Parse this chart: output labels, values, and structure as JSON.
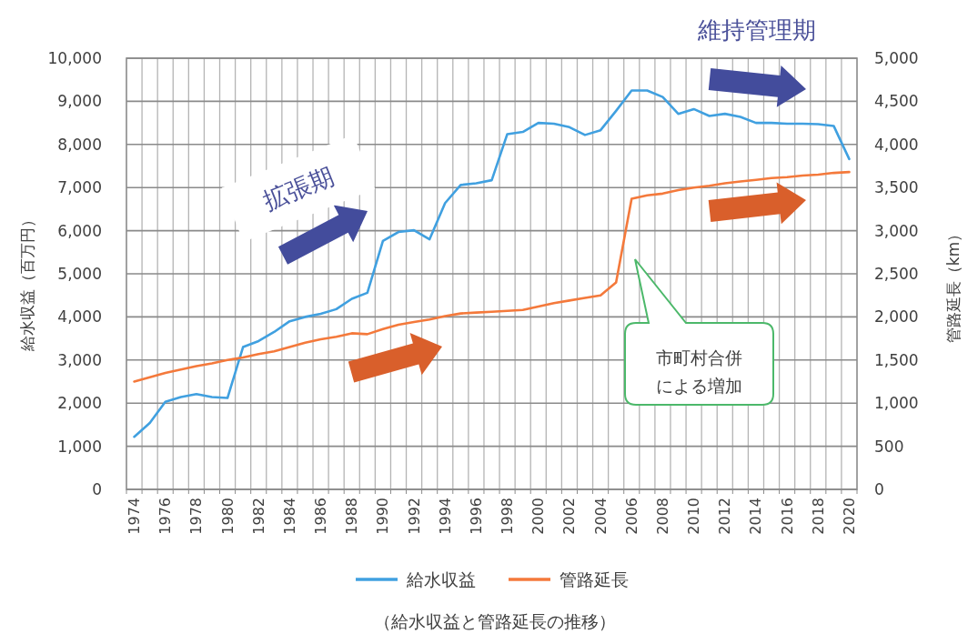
{
  "chart_data": {
    "type": "line",
    "ylabel": "給水収益（百万円）",
    "y2label": "管路延長（km）",
    "annotations": [
      "維持管理期",
      "拡張期",
      "市町村合併による増加",
      "（給水収益と管路延長の推移）"
    ],
    "categories": [
      "1974",
      null,
      "1976",
      null,
      "1978",
      null,
      "1980",
      null,
      "1982",
      null,
      "1984",
      null,
      "1986",
      null,
      "1988",
      null,
      "1990",
      null,
      "1992",
      null,
      "1994",
      null,
      "1996",
      null,
      "1998",
      null,
      "2000",
      null,
      "2002",
      null,
      "2004",
      null,
      "2006",
      null,
      "2008",
      null,
      "2010",
      null,
      "2012",
      null,
      "2014",
      null,
      "2016",
      null,
      "2018",
      null,
      "2020"
    ],
    "series": [
      {
        "name": "給水収益",
        "color": "#40a0e0",
        "values": [
          1220,
          1540,
          2030,
          2140,
          2210,
          2140,
          2120,
          3300,
          3440,
          3650,
          3900,
          4000,
          4070,
          4180,
          4420,
          4560,
          5760,
          5970,
          6010,
          5800,
          6640,
          7060,
          7100,
          7170,
          8240,
          8290,
          8500,
          8480,
          8400,
          8220,
          8330,
          8780,
          9250,
          9250,
          9100,
          8710,
          8820,
          8660,
          8710,
          8640,
          8500,
          8500,
          8480,
          8480,
          8470,
          8430,
          7660
        ]
      },
      {
        "name": "管路延長",
        "color": "#f4793b",
        "axis": "y2",
        "values": [
          1250,
          1300,
          1350,
          1390,
          1430,
          1460,
          1500,
          1530,
          1570,
          1600,
          1650,
          1700,
          1740,
          1770,
          1810,
          1800,
          1860,
          1910,
          1940,
          1970,
          2010,
          2040,
          2050,
          2060,
          2070,
          2080,
          2120,
          2160,
          2190,
          2220,
          2250,
          2400,
          3370,
          3410,
          3430,
          3470,
          3500,
          3520,
          3550,
          3570,
          3590,
          3610,
          3620,
          3640,
          3650,
          3670,
          3680
        ]
      }
    ],
    "ylim": [
      0,
      10000
    ],
    "yticks": [
      0,
      {
        "value": 1000,
        "label": "1,000"
      },
      {
        "value": 2000,
        "label": "2,000"
      },
      {
        "value": 3000,
        "label": "3,000"
      },
      {
        "value": 4000,
        "label": "4,000"
      },
      {
        "value": 5000,
        "label": "5,000"
      },
      {
        "value": 6000,
        "label": "6,000"
      },
      {
        "value": 7000,
        "label": "7,000"
      },
      {
        "value": 8000,
        "label": "8,000"
      },
      {
        "value": 9000,
        "label": "9,000"
      },
      {
        "value": 10000,
        "label": "10,000"
      }
    ],
    "y2lim": [
      0,
      5000
    ],
    "y2ticks": [
      0,
      500,
      {
        "value": 1000,
        "label": "1,000"
      },
      {
        "value": 1500,
        "label": "1,500"
      },
      {
        "value": 2000,
        "label": "2,000"
      },
      {
        "value": 2500,
        "label": "2,500"
      },
      {
        "value": 3000,
        "label": "3,000"
      },
      {
        "value": 3500,
        "label": "3,500"
      },
      {
        "value": 4000,
        "label": "4,000"
      },
      {
        "value": 4500,
        "label": "4,500"
      },
      {
        "value": 5000,
        "label": "5,000"
      }
    ],
    "grid": true,
    "legend": "bottom",
    "marker": "none",
    "line_style": "solid"
  }
}
